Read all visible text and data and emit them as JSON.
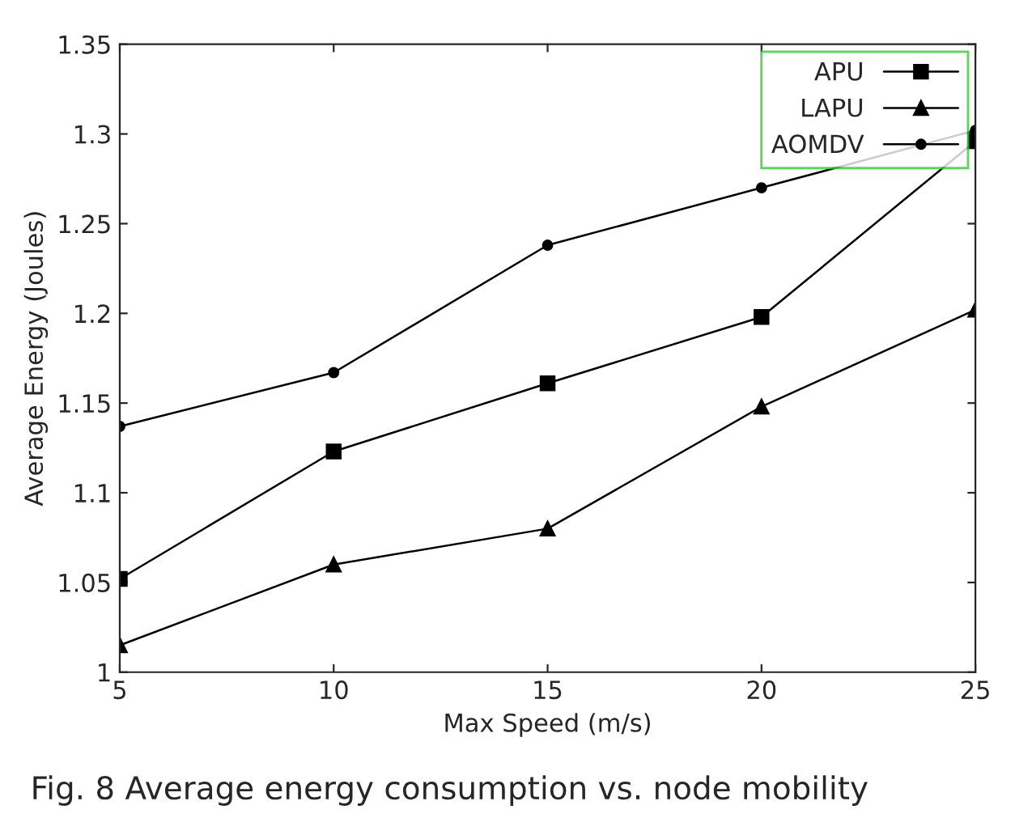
{
  "chart_data": {
    "type": "line",
    "xlabel": "Max Speed (m/s)",
    "ylabel": "Average Energy (Joules)",
    "x": [
      5,
      10,
      15,
      20,
      25
    ],
    "series": [
      {
        "name": "APU",
        "color": "#000000",
        "marker": "square",
        "values": [
          1.052,
          1.123,
          1.161,
          1.198,
          1.296
        ]
      },
      {
        "name": "LAPU",
        "color": "#000000",
        "marker": "triangle",
        "values": [
          1.015,
          1.06,
          1.08,
          1.148,
          1.202
        ]
      },
      {
        "name": "AOMDV",
        "color": "#000000",
        "marker": "circle",
        "values": [
          1.137,
          1.167,
          1.238,
          1.27,
          1.302
        ]
      }
    ],
    "xlim": [
      5,
      25
    ],
    "xticks": [
      5,
      10,
      15,
      20,
      25
    ],
    "ylim": [
      1,
      1.35
    ],
    "yticks": [
      1,
      1.05,
      1.1,
      1.15,
      1.2,
      1.25,
      1.3,
      1.35
    ],
    "grid": false,
    "legend": "top right",
    "line_style": "solid",
    "annotations": [
      "Fig. 8 Average energy consumption vs. node mobility"
    ]
  }
}
